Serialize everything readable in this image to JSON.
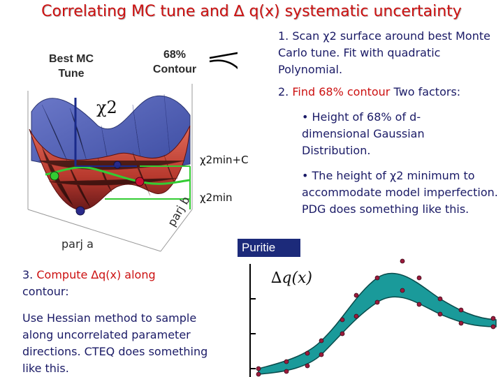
{
  "title": "Correlating MC tune and ∆ q(x) systematic uncertainty",
  "surface_labels": {
    "best_mc": "Best MC Tune",
    "contour68": "68% Contour",
    "chi2": "χ2",
    "chi2_min_c": "χ2min+C",
    "chi2_min": "χ2min",
    "parj_a": "parj a",
    "parj_b": "parj b"
  },
  "steps": {
    "step1": "1. Scan χ2 surface around best Monte Carlo tune. Fit with quadratic Polynomial.",
    "step2_num": "2. ",
    "step2_text": "Find 68% contour",
    "step2_tail": "  Two factors:",
    "bullet1": "• Height of 68% of d-dimensional Gaussian Distribution.",
    "bullet2": "• The height of χ2 minimum to accommodate model imperfection. PDG does something like this.",
    "step3_prefix": "3. ",
    "step3_text": "Compute ∆q(x) along",
    "step3_tail": "contour:",
    "hessian": "Use Hessian method to sample along uncorrelated parameter directions. CTEQ does something like this."
  },
  "plot": {
    "puritie_label": "Puritie",
    "dq_label": "∆q(x)",
    "band_color": "#1a9a9a",
    "point_color": "#9b1b3b"
  },
  "colors": {
    "title": "#cc1111",
    "text": "#1a1a66",
    "accent_green": "#33cc33",
    "arrow": "#000000"
  }
}
